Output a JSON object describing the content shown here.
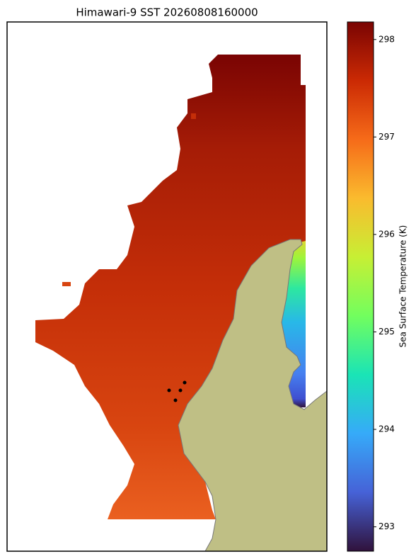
{
  "chart_data": {
    "type": "heatmap",
    "title": "Himawari-9 SST 20260808160000",
    "colormap": "turbo",
    "colorbar": {
      "label": "Sea Surface Temperature (K)",
      "lim": [
        292.75,
        298.18
      ],
      "ticks": [
        293,
        294,
        295,
        296,
        297,
        298
      ]
    }
  }
}
